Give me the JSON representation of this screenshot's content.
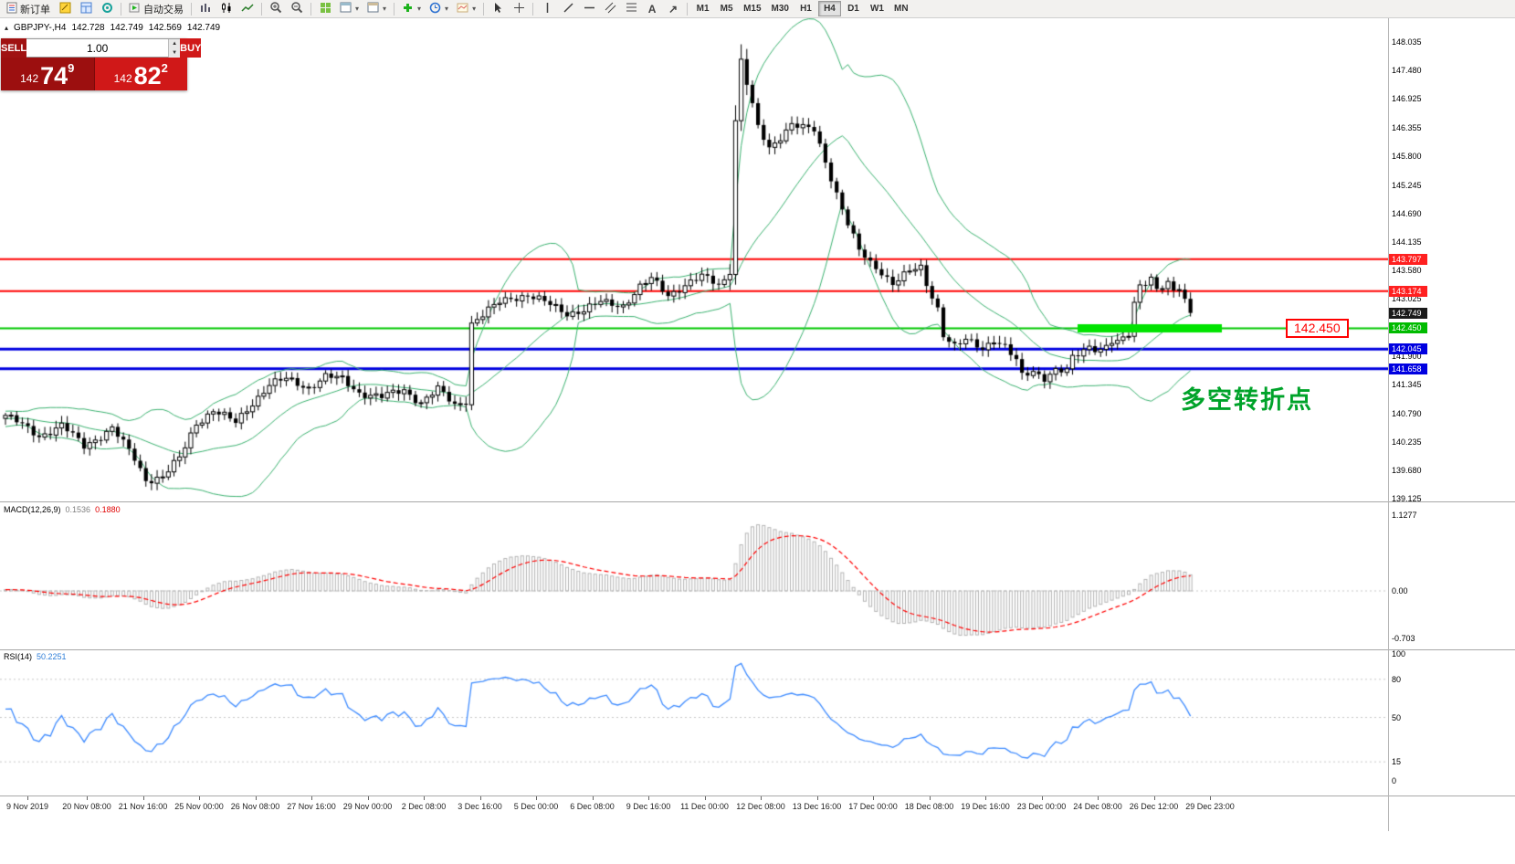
{
  "toolbar": {
    "new_order_label": "新订单",
    "autotrade_label": "自动交易",
    "timeframes": [
      "M1",
      "M5",
      "M15",
      "M30",
      "H1",
      "H4",
      "D1",
      "W1",
      "MN"
    ],
    "active_timeframe": "H4",
    "icons": [
      "new-order",
      "metaeditor",
      "terminal",
      "signals",
      "autotrade-play",
      "bar-chart",
      "candlestick-chart",
      "line-chart",
      "zoom-in",
      "zoom-out",
      "tile-windows",
      "new-chart",
      "chart-profiles",
      "add-indicator",
      "periods-clock",
      "templates",
      "cursor",
      "crosshair",
      "vertical-line",
      "trendline",
      "horizontal-line",
      "channel",
      "fibonacci",
      "text-tool",
      "arrows-tool"
    ]
  },
  "quote_bar": {
    "symbol_period": "GBPJPY-,H4",
    "open": "142.728",
    "high": "142.749",
    "low": "142.569",
    "close": "142.749"
  },
  "trade_panel": {
    "sell_label": "SELL",
    "buy_label": "BUY",
    "volume": "1.00",
    "sell_price_prefix": "142",
    "sell_price_big": "74",
    "sell_price_sup": "9",
    "buy_price_prefix": "142",
    "buy_price_big": "82",
    "buy_price_sup": "2"
  },
  "price_axis": {
    "ticks": [
      "148.035",
      "147.480",
      "146.925",
      "146.355",
      "145.800",
      "145.245",
      "144.690",
      "144.135",
      "143.580",
      "143.025",
      "141.900",
      "141.345",
      "140.790",
      "140.235",
      "139.680",
      "139.125"
    ],
    "badges": [
      {
        "text": "143.797",
        "price": 143.797,
        "bg": "#ff2020",
        "fg": "#ffffff"
      },
      {
        "text": "143.174",
        "price": 143.174,
        "bg": "#ff2020",
        "fg": "#ffffff"
      },
      {
        "text": "142.749",
        "price": 142.749,
        "bg": "#1a1a1a",
        "fg": "#ffffff"
      },
      {
        "text": "142.450",
        "price": 142.45,
        "bg": "#00bb00",
        "fg": "#ffffff"
      },
      {
        "text": "142.045",
        "price": 142.045,
        "bg": "#0000e0",
        "fg": "#ffffff"
      },
      {
        "text": "141.658",
        "price": 141.658,
        "bg": "#0000e0",
        "fg": "#ffffff"
      }
    ]
  },
  "macd_panel": {
    "name": "MACD(12,26,9)",
    "value_main": "0.1536",
    "value_signal": "0.1880",
    "axis": [
      {
        "v": 1.1277,
        "text": "1.1277"
      },
      {
        "v": 0,
        "text": "0.00"
      },
      {
        "v": -0.703,
        "text": "-0.703"
      }
    ]
  },
  "rsi_panel": {
    "name": "RSI(14)",
    "value": "50.2251",
    "axis": [
      {
        "v": 100,
        "text": "100"
      },
      {
        "v": 80,
        "text": "80"
      },
      {
        "v": 50,
        "text": "50"
      },
      {
        "v": 15,
        "text": "15"
      },
      {
        "v": 0,
        "text": "0"
      }
    ],
    "levels": [
      80,
      50,
      15
    ]
  },
  "time_axis": {
    "labels": [
      "9 Nov 2019",
      "20 Nov 08:00",
      "21 Nov 16:00",
      "25 Nov 00:00",
      "26 Nov 08:00",
      "27 Nov 16:00",
      "29 Nov 00:00",
      "2 Dec 08:00",
      "3 Dec 16:00",
      "5 Dec 00:00",
      "6 Dec 08:00",
      "9 Dec 16:00",
      "11 Dec 00:00",
      "12 Dec 08:00",
      "13 Dec 16:00",
      "17 Dec 00:00",
      "18 Dec 08:00",
      "19 Dec 16:00",
      "23 Dec 00:00",
      "24 Dec 08:00",
      "26 Dec 12:00",
      "29 Dec 23:00"
    ]
  },
  "annotations": {
    "level_label": "142.450",
    "note_text": "多空转折点"
  },
  "chart_data": {
    "type": "candlestick",
    "symbol": "GBPJPY-",
    "timeframe": "H4",
    "ylim": [
      139.125,
      148.035
    ],
    "current_price": 142.749,
    "candle_count": 212,
    "price_path": [
      [
        0,
        140.75
      ],
      [
        6,
        140.35
      ],
      [
        10,
        140.55
      ],
      [
        14,
        140.15
      ],
      [
        19,
        140.5
      ],
      [
        23,
        139.9
      ],
      [
        25,
        139.5
      ],
      [
        28,
        139.55
      ],
      [
        31,
        139.9
      ],
      [
        34,
        140.6
      ],
      [
        37,
        140.85
      ],
      [
        41,
        140.6
      ],
      [
        44,
        141.0
      ],
      [
        47,
        141.35
      ],
      [
        50,
        141.45
      ],
      [
        54,
        141.3
      ],
      [
        57,
        141.5
      ],
      [
        60,
        141.45
      ],
      [
        63,
        141.2
      ],
      [
        67,
        141.1
      ],
      [
        71,
        141.25
      ],
      [
        74,
        141.0
      ],
      [
        77,
        141.25
      ],
      [
        80,
        140.95
      ],
      [
        82,
        141.05
      ],
      [
        83,
        142.55
      ],
      [
        85,
        142.7
      ],
      [
        88,
        142.95
      ],
      [
        90,
        143.05
      ],
      [
        93,
        143.1
      ],
      [
        97,
        142.9
      ],
      [
        100,
        142.75
      ],
      [
        103,
        142.8
      ],
      [
        106,
        142.95
      ],
      [
        110,
        142.9
      ],
      [
        113,
        143.25
      ],
      [
        115,
        143.4
      ],
      [
        118,
        143.1
      ],
      [
        121,
        143.3
      ],
      [
        124,
        143.45
      ],
      [
        127,
        143.3
      ],
      [
        129,
        143.5
      ],
      [
        130,
        146.5
      ],
      [
        131,
        147.7
      ],
      [
        132,
        147.2
      ],
      [
        134,
        146.35
      ],
      [
        136,
        145.95
      ],
      [
        138,
        146.2
      ],
      [
        140,
        146.45
      ],
      [
        142,
        146.35
      ],
      [
        144,
        146.3
      ],
      [
        146,
        145.7
      ],
      [
        148,
        145.1
      ],
      [
        150,
        144.5
      ],
      [
        152,
        143.95
      ],
      [
        154,
        143.7
      ],
      [
        156,
        143.55
      ],
      [
        158,
        143.35
      ],
      [
        161,
        143.55
      ],
      [
        163,
        143.6
      ],
      [
        164,
        143.3
      ],
      [
        166,
        142.85
      ],
      [
        167,
        142.35
      ],
      [
        169,
        142.1
      ],
      [
        171,
        142.2
      ],
      [
        174,
        142.05
      ],
      [
        176,
        142.25
      ],
      [
        178,
        142.1
      ],
      [
        180,
        141.8
      ],
      [
        181,
        141.5
      ],
      [
        183,
        141.6
      ],
      [
        185,
        141.5
      ],
      [
        187,
        141.65
      ],
      [
        189,
        141.6
      ],
      [
        190,
        141.85
      ],
      [
        192,
        142.0
      ],
      [
        193,
        142.1
      ],
      [
        195,
        142.05
      ],
      [
        197,
        142.2
      ],
      [
        198,
        142.15
      ],
      [
        200,
        142.3
      ],
      [
        201,
        142.9
      ],
      [
        202,
        143.3
      ],
      [
        204,
        143.45
      ],
      [
        205,
        143.25
      ],
      [
        207,
        143.3
      ],
      [
        208,
        143.15
      ],
      [
        209,
        143.2
      ],
      [
        210,
        142.95
      ],
      [
        211,
        142.749
      ]
    ],
    "bollinger": {
      "period": 20,
      "deviation": 2,
      "color": "#3cb371"
    },
    "horizontal_lines": [
      {
        "price": 143.797,
        "color": "#ff0000",
        "width": 2
      },
      {
        "price": 143.174,
        "color": "#ff0000",
        "width": 2
      },
      {
        "price": 142.45,
        "color": "#00c800",
        "width": 2
      },
      {
        "price": 142.045,
        "color": "#0000e0",
        "width": 3
      },
      {
        "price": 141.658,
        "color": "#0000e0",
        "width": 3
      }
    ],
    "highlight_segment": {
      "price": 142.45,
      "x0": 1180,
      "x1": 1338,
      "color": "#00e400",
      "thickness": 9
    },
    "macd": {
      "fast": 12,
      "slow": 26,
      "signal": 9
    },
    "rsi": {
      "period": 14
    }
  }
}
